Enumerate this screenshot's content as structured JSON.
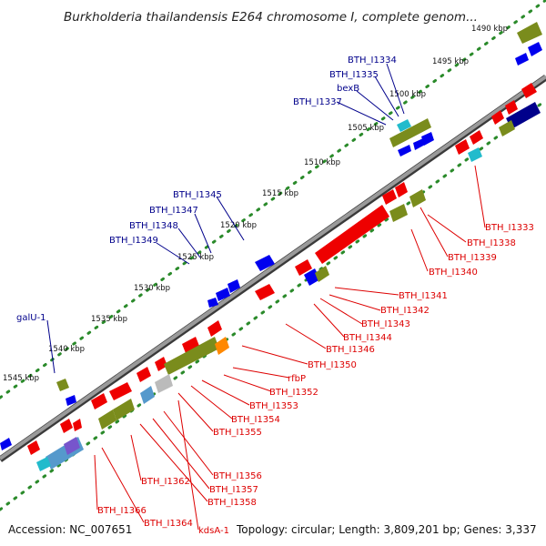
{
  "title": "Burkholderia thailandensis E264 chromosome I, complete genom...",
  "footer": {
    "accession": "Accession: NC_007651",
    "topology": "Topology: circular; Length: 3,809,201 bp; Genes: 3,337"
  },
  "colors": {
    "forward_label": "#00008b",
    "reverse_label": "#dd0000",
    "cds_red": "#ee0000",
    "cds_blue": "#0000ee",
    "cog_green": "#7a8c1c",
    "backbone": "#8a8a8a"
  },
  "ticks": [
    {
      "text": "1490 kbp"
    },
    {
      "text": "1495 kbp"
    },
    {
      "text": "1500 kbp"
    },
    {
      "text": "1505 kbp"
    },
    {
      "text": "1510 kbp"
    },
    {
      "text": "1515 kbp"
    },
    {
      "text": "1520 kbp"
    },
    {
      "text": "1525 kbp"
    },
    {
      "text": "1530 kbp"
    },
    {
      "text": "1535 kbp"
    },
    {
      "text": "1540 kbp"
    },
    {
      "text": "1545 kbp"
    }
  ],
  "forward_labels": [
    {
      "text": "BTH_I1334"
    },
    {
      "text": "BTH_I1335"
    },
    {
      "text": "bexB"
    },
    {
      "text": "BTH_I1337"
    },
    {
      "text": "BTH_I1345"
    },
    {
      "text": "BTH_I1347"
    },
    {
      "text": "BTH_I1348"
    },
    {
      "text": "BTH_I1349"
    },
    {
      "text": "galU-1"
    }
  ],
  "reverse_labels": [
    {
      "text": "BTH_I1333"
    },
    {
      "text": "BTH_I1338"
    },
    {
      "text": "BTH_I1339"
    },
    {
      "text": "BTH_I1340"
    },
    {
      "text": "BTH_I1341"
    },
    {
      "text": "BTH_I1342"
    },
    {
      "text": "BTH_I1343"
    },
    {
      "text": "BTH_I1344"
    },
    {
      "text": "BTH_I1346"
    },
    {
      "text": "BTH_I1350"
    },
    {
      "text": "rfbP"
    },
    {
      "text": "BTH_I1352"
    },
    {
      "text": "BTH_I1353"
    },
    {
      "text": "BTH_I1354"
    },
    {
      "text": "BTH_I1355"
    },
    {
      "text": "BTH_I1356"
    },
    {
      "text": "BTH_I1357"
    },
    {
      "text": "BTH_I1358"
    },
    {
      "text": "BTH_I1362"
    },
    {
      "text": "BTH_I1364"
    },
    {
      "text": "BTH_I1366"
    },
    {
      "text": "kdsA-1"
    }
  ]
}
